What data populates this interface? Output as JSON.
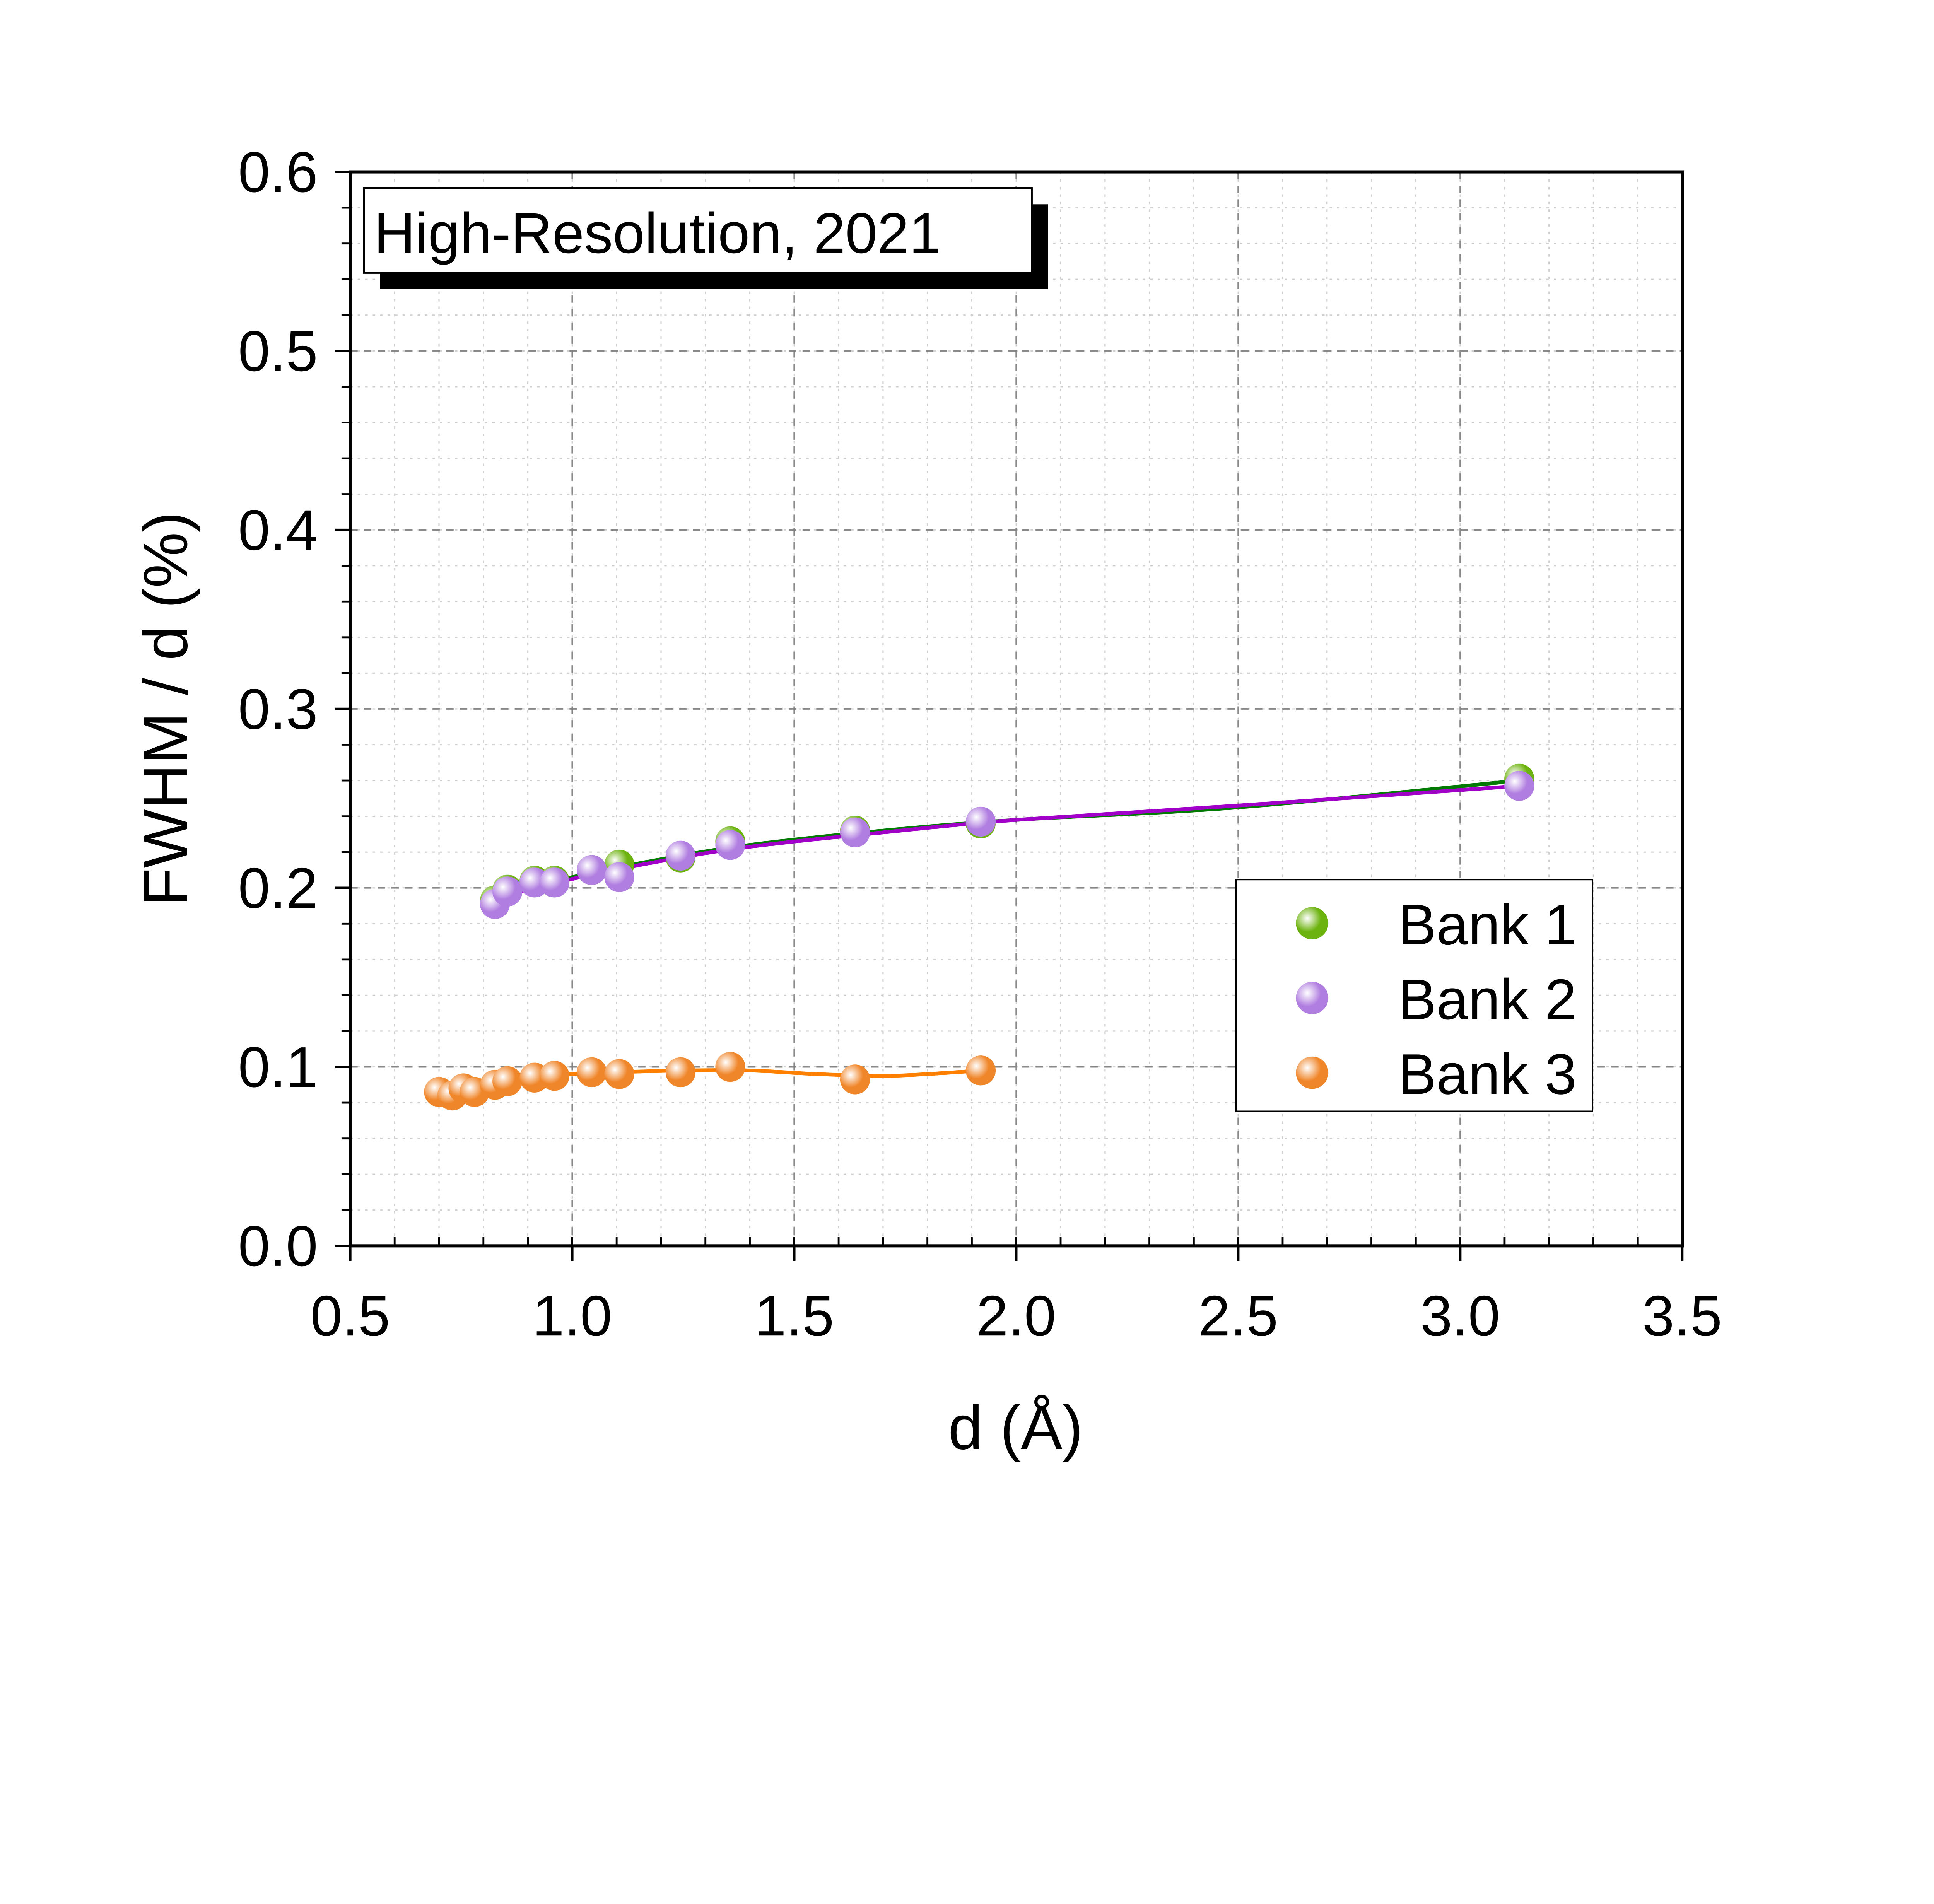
{
  "chart_data": {
    "type": "scatter",
    "annotation": "High-Resolution, 2021",
    "xlabel": "d (Å)",
    "ylabel": "FWHM / d (%)",
    "xlim": [
      0.5,
      3.5
    ],
    "ylim": [
      0.0,
      0.6
    ],
    "xticks": [
      "0.5",
      "1.0",
      "1.5",
      "2.0",
      "2.5",
      "3.0",
      "3.5"
    ],
    "yticks": [
      "0.0",
      "0.1",
      "0.2",
      "0.3",
      "0.4",
      "0.5",
      "0.6"
    ],
    "grid": true,
    "legend_position": "right-middle",
    "series": [
      {
        "name": "Bank 1",
        "color": "#6db30f",
        "fit_color": "#007a00",
        "x": [
          0.826,
          0.854,
          0.915,
          0.96,
          1.044,
          1.106,
          1.244,
          1.356,
          1.637,
          1.92,
          3.133
        ],
        "y": [
          0.193,
          0.199,
          0.204,
          0.204,
          0.21,
          0.213,
          0.217,
          0.226,
          0.232,
          0.236,
          0.261
        ],
        "fit_x": [
          0.826,
          1.0,
          1.2,
          1.4,
          1.7,
          2.0,
          2.5,
          3.133
        ],
        "fit_y": [
          0.195,
          0.206,
          0.216,
          0.224,
          0.232,
          0.238,
          0.245,
          0.26
        ]
      },
      {
        "name": "Bank 2",
        "color": "#b07de0",
        "fit_color": "#a000c8",
        "x": [
          0.826,
          0.854,
          0.915,
          0.96,
          1.044,
          1.106,
          1.244,
          1.356,
          1.637,
          1.92,
          3.133
        ],
        "y": [
          0.191,
          0.198,
          0.203,
          0.203,
          0.21,
          0.206,
          0.218,
          0.224,
          0.231,
          0.237,
          0.257
        ],
        "fit_x": [
          0.826,
          1.0,
          1.2,
          1.4,
          1.7,
          2.0,
          2.5,
          3.133
        ],
        "fit_y": [
          0.194,
          0.205,
          0.215,
          0.223,
          0.231,
          0.238,
          0.246,
          0.257
        ]
      },
      {
        "name": "Bank 3",
        "color": "#f0862a",
        "fit_color": "#ff7f00",
        "x": [
          0.7,
          0.73,
          0.755,
          0.78,
          0.826,
          0.854,
          0.915,
          0.96,
          1.044,
          1.106,
          1.244,
          1.356,
          1.637,
          1.92
        ],
        "y": [
          0.086,
          0.084,
          0.088,
          0.086,
          0.09,
          0.092,
          0.094,
          0.095,
          0.097,
          0.096,
          0.097,
          0.1,
          0.093,
          0.098
        ],
        "fit_x": [
          0.7,
          0.8,
          0.9,
          1.0,
          1.1,
          1.25,
          1.4,
          1.55,
          1.7,
          1.8,
          1.92
        ],
        "fit_y": [
          0.083,
          0.089,
          0.093,
          0.096,
          0.097,
          0.098,
          0.098,
          0.096,
          0.095,
          0.096,
          0.098
        ]
      }
    ]
  }
}
